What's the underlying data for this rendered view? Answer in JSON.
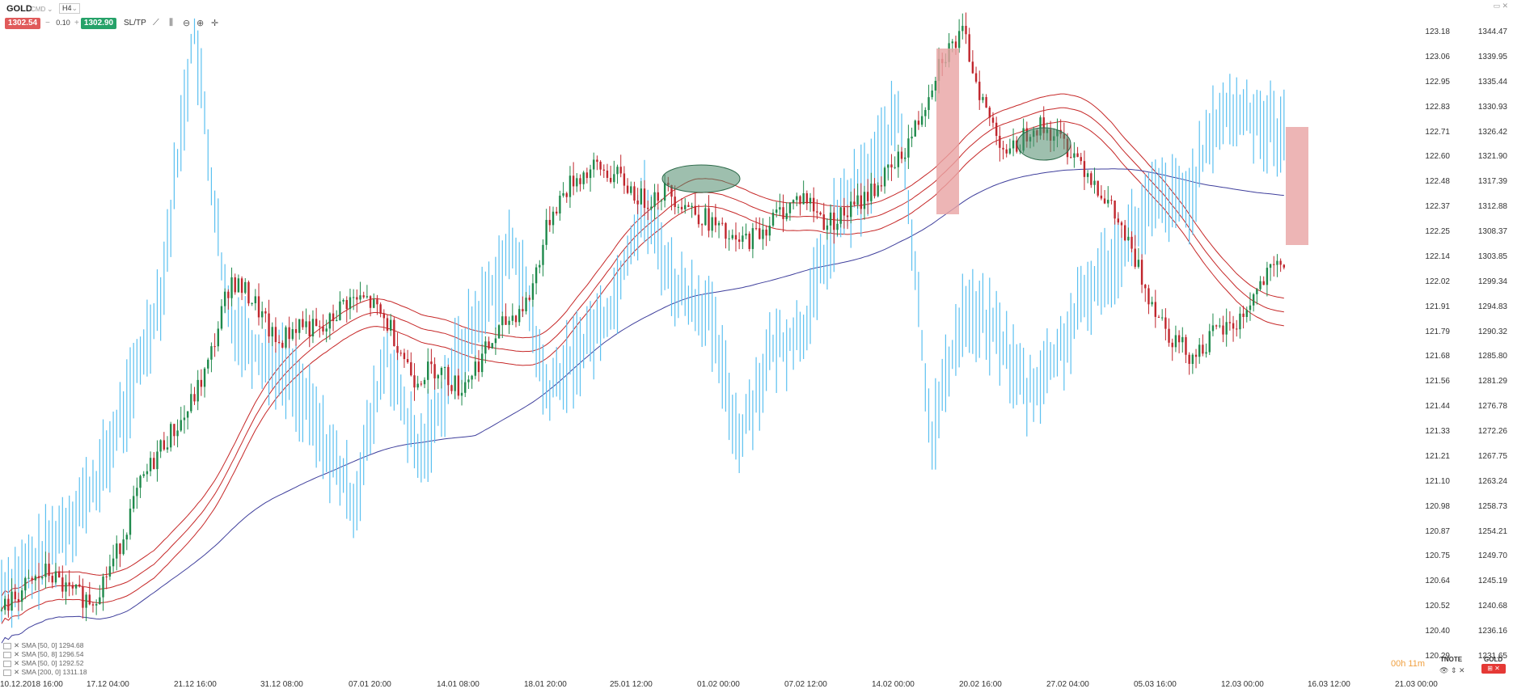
{
  "header": {
    "symbol": "GOLD",
    "broker": "CMD",
    "timeframe": "H4",
    "dropdown_chevron": "⌄",
    "window_icons": "▭ ✕"
  },
  "trade": {
    "sell_price": "1302.54",
    "volume": "0.10",
    "buy_price": "1302.90",
    "minus": "−",
    "plus": "+",
    "sltp_label": "SL/TP"
  },
  "tools": [
    "line-tool-icon",
    "indicator-icon",
    "zoom-out-icon",
    "zoom-in-icon",
    "crosshair-icon"
  ],
  "right_axis_labels": [
    "1344.47",
    "1339.95",
    "1335.44",
    "1330.93",
    "1326.42",
    "1321.90",
    "1317.39",
    "1312.88",
    "1308.37",
    "1303.85",
    "1299.34",
    "1294.83",
    "1290.32",
    "1285.80",
    "1281.29",
    "1276.78",
    "1272.26",
    "1267.75",
    "1263.24",
    "1258.73",
    "1254.21",
    "1249.70",
    "1245.19",
    "1240.68",
    "1236.16",
    "1231.65"
  ],
  "left_axis_labels": [
    "123.18",
    "123.06",
    "122.95",
    "122.83",
    "122.71",
    "122.60",
    "122.48",
    "122.37",
    "122.25",
    "122.14",
    "122.02",
    "121.91",
    "121.79",
    "121.68",
    "121.56",
    "121.44",
    "121.33",
    "121.21",
    "121.10",
    "120.98",
    "120.87",
    "120.75",
    "120.64",
    "120.52",
    "120.40",
    "120.29"
  ],
  "x_axis_labels": [
    "10.12.2018 16:00",
    "17.12 04:00",
    "21.12 16:00",
    "31.12 08:00",
    "07.01 20:00",
    "14.01 08:00",
    "18.01 20:00",
    "25.01 12:00",
    "01.02 00:00",
    "07.02 12:00",
    "14.02 00:00",
    "20.02 16:00",
    "27.02 04:00",
    "05.03 16:00",
    "12.03 00:00",
    "16.03 12:00",
    "21.03 00:00"
  ],
  "legend": [
    "SMA [50, 0] 1294.68",
    "SMA [50, 8] 1296.54",
    "SMA [50, 0] 1292.52",
    "SMA [200, 0] 1311.18"
  ],
  "footer": {
    "timer": "00h 11m",
    "tnote_label": "TNOTE",
    "gold_label": "GOLD",
    "badge": "⊞ ✕",
    "mini_icons": "👁 ⇕ ✕"
  },
  "colors": {
    "up_candle": "#1e8a4c",
    "down_candle": "#c0262d",
    "tnote_line": "#5bc0f0",
    "envelope": "#c62828",
    "sma200": "#3f3f9c",
    "zone": "#e8a3a3",
    "ellipse": "#4e8a6b"
  },
  "chart_data": {
    "type": "line",
    "series": [
      {
        "name": "GOLD",
        "values": [
          1240,
          1244,
          1247,
          1243,
          1242,
          1250,
          1262,
          1270,
          1275,
          1284,
          1300,
          1296,
          1288,
          1292,
          1290,
          1296,
          1296,
          1291,
          1282,
          1284,
          1280,
          1286,
          1292,
          1296,
          1312,
          1318,
          1320,
          1318,
          1314,
          1316,
          1313,
          1310,
          1306,
          1308,
          1312,
          1315,
          1310,
          1312,
          1316,
          1320,
          1328,
          1340,
          1344,
          1330,
          1322,
          1328,
          1326,
          1322,
          1316,
          1308,
          1298,
          1290,
          1286,
          1290,
          1292,
          1299,
          1303
        ]
      },
      {
        "name": "TNOTE",
        "values": [
          120.6,
          120.7,
          120.9,
          121.1,
          121.5,
          122.0,
          123.2,
          121.9,
          121.7,
          121.6,
          121.3,
          121.0,
          121.7,
          121.2,
          121.6,
          121.9,
          122.2,
          121.5,
          121.7,
          121.9,
          122.4,
          122.0,
          121.9,
          121.3,
          121.7,
          121.8,
          122.3,
          122.5,
          122.8,
          121.3,
          121.9,
          121.8,
          121.5,
          121.7,
          122.0,
          122.2,
          122.4,
          122.4,
          122.8,
          122.8,
          122.7
        ]
      }
    ],
    "ylim": [
      1231.65,
      1344.47
    ],
    "annotations": [
      "ellipse near 01.02",
      "ellipse near 27.02",
      "red zone 20.02",
      "red zone 16.03"
    ]
  }
}
